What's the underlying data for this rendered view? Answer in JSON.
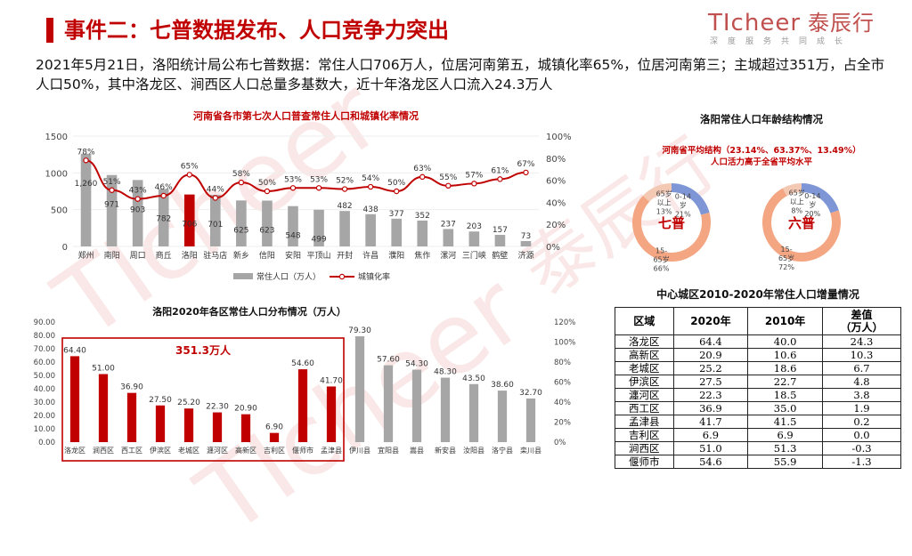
{
  "header": {
    "title": "事件二：七普数据发布、人口竞争力突出",
    "logo_en": "TIcheer",
    "logo_cn": "泰辰行",
    "logo_sub": "深度服务共同成长"
  },
  "intro": "2021年5月21日，洛阳统计局公布七普数据：常住人口706万人，位居河南第五，城镇化率65%，位居河南第三；主城超过351万，占全市人口50%，其中洛龙区、涧西区人口总量多基数大，近十年洛龙区人口流入24.3万人",
  "watermark": {
    "brand": "TIcheer",
    "cn": "泰辰行",
    "chars": [
      "深",
      "度",
      "服",
      "务",
      "共",
      "同",
      "成",
      "长"
    ]
  },
  "colors": {
    "red": "#c00000",
    "gray": "#a6a6a6",
    "blue": "#7f96d6",
    "salmon": "#f4a582"
  },
  "chart_data": [
    {
      "type": "bar+line",
      "title": "河南省各市第七次人口普查常住人口和城镇化率情况",
      "categories": [
        "郑州",
        "南阳",
        "周口",
        "商丘",
        "洛阳",
        "驻马店",
        "新乡",
        "信阳",
        "安阳",
        "平顶山",
        "开封",
        "许昌",
        "濮阳",
        "焦作",
        "漯河",
        "三门峡",
        "鹤壁",
        "济源"
      ],
      "series": [
        {
          "name": "常住人口（万人）",
          "type": "bar",
          "values": [
            1260,
            971,
            903,
            782,
            706,
            701,
            625,
            623,
            548,
            499,
            482,
            438,
            377,
            352,
            237,
            203,
            157,
            73
          ],
          "labels": [
            "1,260",
            "971",
            "903",
            "782",
            "706",
            "701",
            "625",
            "623",
            "548",
            "499",
            "482",
            "438",
            "377",
            "352",
            "237",
            "203",
            "157",
            "73"
          ]
        },
        {
          "name": "城镇化率",
          "type": "line",
          "values": [
            78,
            51,
            43,
            46,
            65,
            44,
            58,
            50,
            53,
            53,
            52,
            54,
            50,
            63,
            55,
            57,
            61,
            67
          ],
          "labels": [
            "78%",
            "51%",
            "43%",
            "46%",
            "65%",
            "44%",
            "58%",
            "50%",
            "53%",
            "53%",
            "52%",
            "54%",
            "50%",
            "63%",
            "55%",
            "57%",
            "61%",
            "67%"
          ]
        }
      ],
      "highlight_index": 4,
      "y_left": {
        "ticks": [
          "0",
          "500",
          "1000",
          "1500"
        ],
        "ylim": [
          0,
          1500
        ]
      },
      "y_right": {
        "ticks": [
          "0%",
          "20%",
          "40%",
          "60%",
          "80%",
          "100%"
        ],
        "ylim": [
          0,
          100
        ]
      },
      "legend_position": "bottom"
    },
    {
      "type": "bar",
      "title": "洛阳2020年各区常住人口分布情况（万人）",
      "categories": [
        "洛龙区",
        "涧西区",
        "西工区",
        "伊滨区",
        "老城区",
        "瀍河区",
        "高新区",
        "吉利区",
        "偃师市",
        "孟津县",
        "伊川县",
        "宜阳县",
        "嵩县",
        "新安县",
        "汝阳县",
        "洛宁县",
        "栾川县"
      ],
      "values": [
        64.4,
        51.0,
        36.9,
        27.5,
        25.2,
        22.3,
        20.9,
        6.9,
        54.6,
        41.7,
        79.3,
        57.6,
        54.3,
        48.3,
        43.5,
        38.6,
        32.7
      ],
      "labels": [
        "64.40",
        "51.00",
        "36.90",
        "27.50",
        "25.20",
        "22.30",
        "20.90",
        "6.90",
        "54.60",
        "41.70",
        "79.30",
        "57.60",
        "54.30",
        "48.30",
        "43.50",
        "38.60",
        "32.70"
      ],
      "highlight_count": 10,
      "box_label": "351.3万人",
      "y_left": {
        "ticks": [
          "0.00",
          "10.00",
          "20.00",
          "30.00",
          "40.00",
          "50.00",
          "60.00",
          "70.00",
          "80.00",
          "90.00"
        ],
        "ylim": [
          0,
          90
        ]
      },
      "y_right": {
        "ticks": [
          "0%",
          "20%",
          "40%",
          "60%",
          "80%",
          "100%",
          "120%"
        ],
        "ylim": [
          0,
          120
        ]
      }
    },
    {
      "type": "pie",
      "title": "洛阳常住人口年龄结构情况",
      "note_line1": "河南省平均结构（23.14%、63.37%、13.49%）",
      "note_line2": "人口活力高于全省平均水平",
      "donuts": [
        {
          "center_label": "七普",
          "slices": [
            {
              "name": "0-14岁",
              "value": 21,
              "label": "0-14\n岁\n21%"
            },
            {
              "name": "15-65岁",
              "value": 66,
              "label": "15-\n65岁\n66%"
            },
            {
              "name": "65岁以上",
              "value": 13,
              "label": "65岁\n以上\n13%"
            }
          ]
        },
        {
          "center_label": "六普",
          "slices": [
            {
              "name": "0-14岁",
              "value": 20,
              "label": "0-14\n岁\n20%"
            },
            {
              "name": "15-65岁",
              "value": 72,
              "label": "15-\n65岁\n72%"
            },
            {
              "name": "65岁以上",
              "value": 8,
              "label": "65岁\n以上\n8%"
            }
          ]
        }
      ]
    },
    {
      "type": "table",
      "title": "中心城区2010-2020年常住人口增量情况",
      "headers": [
        "区域",
        "2020年",
        "2010年",
        "差值（万人）"
      ],
      "header_line1": "差值",
      "header_line2": "（万人）",
      "rows": [
        [
          "洛龙区",
          "64.4",
          "40.0",
          "24.3"
        ],
        [
          "高新区",
          "20.9",
          "10.6",
          "10.3"
        ],
        [
          "老城区",
          "25.2",
          "18.6",
          "6.7"
        ],
        [
          "伊滨区",
          "27.5",
          "22.7",
          "4.8"
        ],
        [
          "瀍河区",
          "22.3",
          "18.5",
          "3.8"
        ],
        [
          "西工区",
          "36.9",
          "35.0",
          "1.9"
        ],
        [
          "孟津县",
          "41.7",
          "41.5",
          "0.2"
        ],
        [
          "吉利区",
          "6.9",
          "6.9",
          "0.0"
        ],
        [
          "涧西区",
          "51.0",
          "51.3",
          "-0.3"
        ],
        [
          "偃师市",
          "54.6",
          "55.9",
          "-1.3"
        ]
      ]
    }
  ]
}
